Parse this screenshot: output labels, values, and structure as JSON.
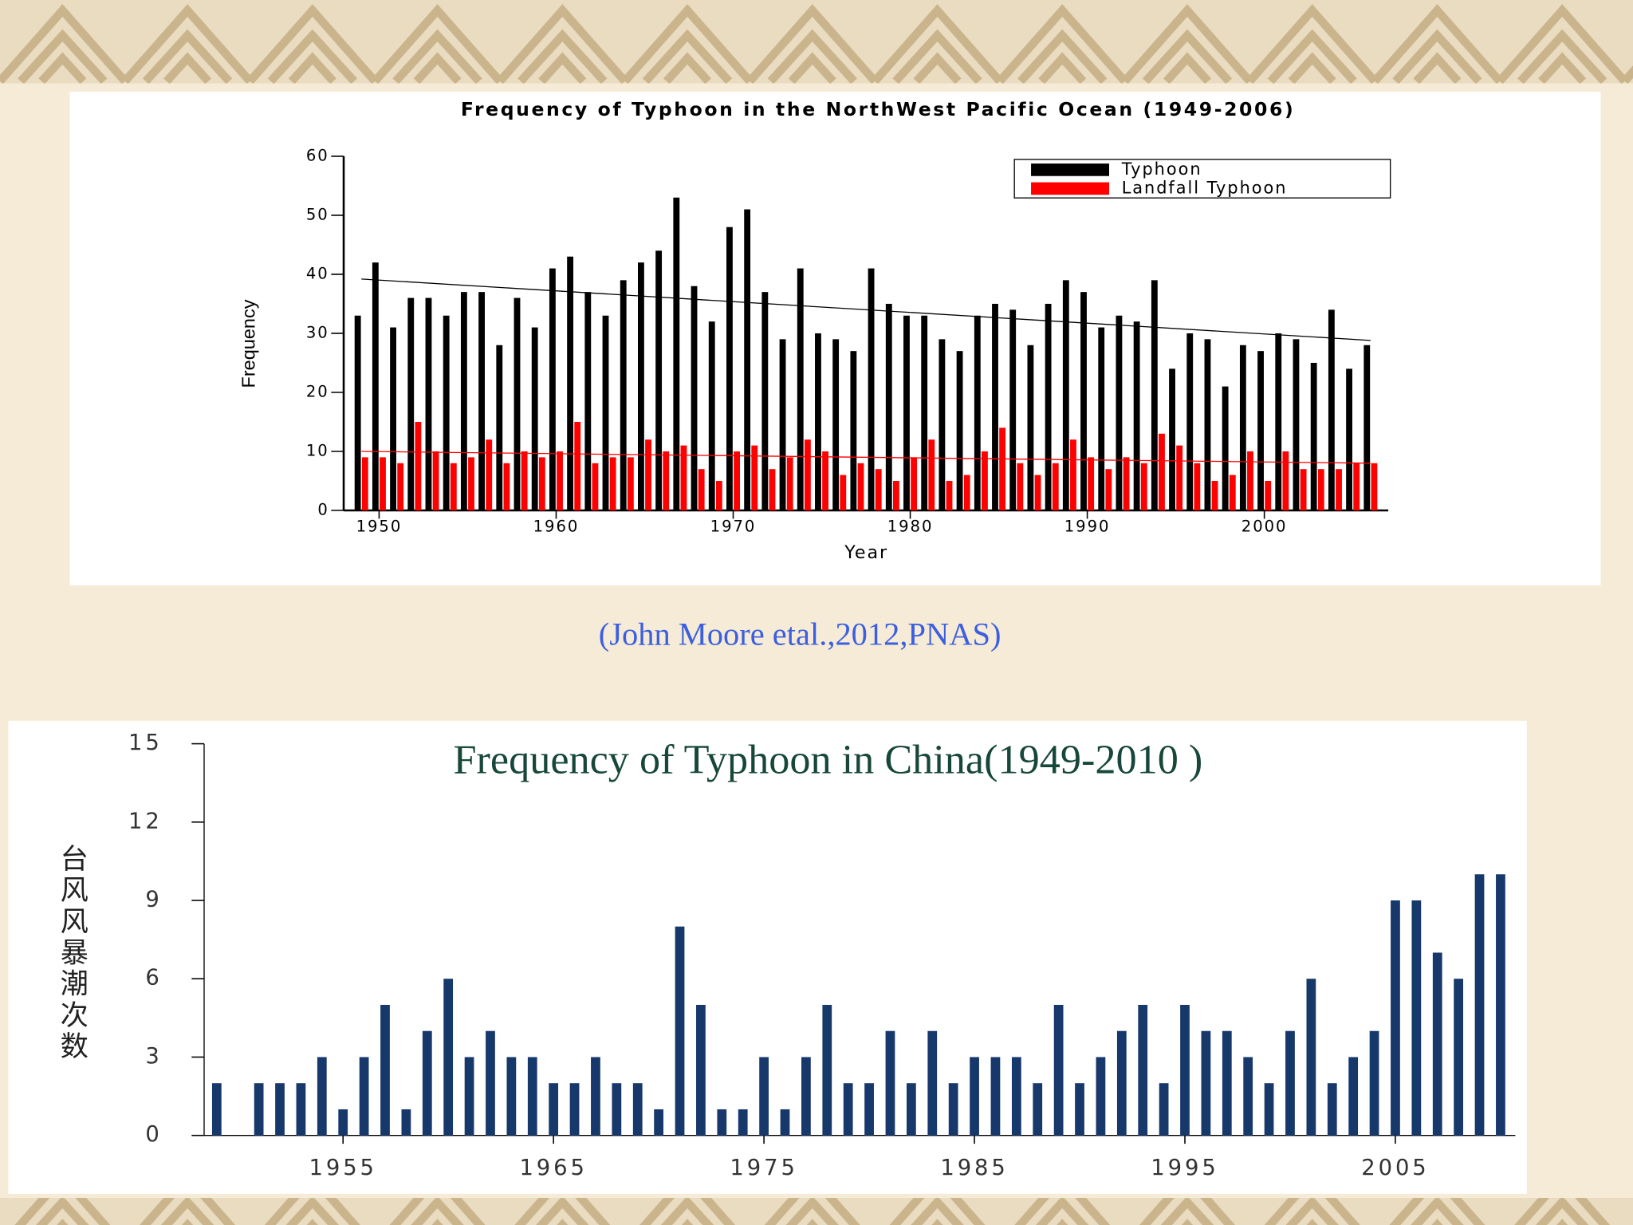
{
  "chart_data": [
    {
      "type": "bar",
      "title": "Frequency of Typhoon in  the NorthWest Pacific Ocean (1949-2006)",
      "x_label": "Year",
      "y_label": "Frequency",
      "x": [
        1949,
        1950,
        1951,
        1952,
        1953,
        1954,
        1955,
        1956,
        1957,
        1958,
        1959,
        1960,
        1961,
        1962,
        1963,
        1964,
        1965,
        1966,
        1967,
        1968,
        1969,
        1970,
        1971,
        1972,
        1973,
        1974,
        1975,
        1976,
        1977,
        1978,
        1979,
        1980,
        1981,
        1982,
        1983,
        1984,
        1985,
        1986,
        1987,
        1988,
        1989,
        1990,
        1991,
        1992,
        1993,
        1994,
        1995,
        1996,
        1997,
        1998,
        1999,
        2000,
        2001,
        2002,
        2003,
        2004,
        2005,
        2006
      ],
      "series": [
        {
          "name": "Typhoon",
          "color": "#000000",
          "values": [
            33,
            42,
            31,
            36,
            36,
            33,
            37,
            37,
            28,
            36,
            31,
            41,
            43,
            37,
            33,
            39,
            42,
            44,
            53,
            38,
            32,
            48,
            51,
            37,
            29,
            41,
            30,
            29,
            27,
            41,
            35,
            33,
            33,
            29,
            27,
            33,
            35,
            34,
            28,
            35,
            39,
            37,
            31,
            33,
            32,
            39,
            24,
            30,
            29,
            21,
            28,
            27,
            30,
            29,
            25,
            34,
            24,
            28
          ]
        },
        {
          "name": "Landfall Typhoon",
          "color": "#ff0000",
          "values": [
            9,
            9,
            8,
            15,
            10,
            8,
            9,
            12,
            8,
            10,
            9,
            10,
            15,
            8,
            9,
            9,
            12,
            10,
            11,
            7,
            5,
            10,
            11,
            7,
            9,
            12,
            10,
            6,
            8,
            7,
            5,
            9,
            12,
            5,
            6,
            10,
            14,
            8,
            6,
            8,
            12,
            9,
            7,
            9,
            8,
            13,
            11,
            8,
            5,
            6,
            10,
            5,
            10,
            7,
            7,
            7,
            8,
            8
          ]
        }
      ],
      "trend_lines": [
        {
          "color": "#000000",
          "values": [
            39.2,
            28.8
          ]
        },
        {
          "color": "#ff0000",
          "values": [
            10,
            8
          ]
        }
      ],
      "xlim": [
        1948,
        2007
      ],
      "ylim": [
        0,
        60
      ],
      "xticks": [
        1950,
        1960,
        1970,
        1980,
        1990,
        2000
      ],
      "yticks": [
        0,
        10,
        20,
        30,
        40,
        50,
        60
      ],
      "legend": "upper right"
    },
    {
      "type": "bar",
      "title": "Frequency of Typhoon in China(1949-2010 )",
      "y_label": "台风风暴潮次数",
      "x": [
        1949,
        1950,
        1951,
        1952,
        1953,
        1954,
        1955,
        1956,
        1957,
        1958,
        1959,
        1960,
        1961,
        1962,
        1963,
        1964,
        1965,
        1966,
        1967,
        1968,
        1969,
        1970,
        1971,
        1972,
        1973,
        1974,
        1975,
        1976,
        1977,
        1978,
        1979,
        1980,
        1981,
        1982,
        1983,
        1984,
        1985,
        1986,
        1987,
        1988,
        1989,
        1990,
        1991,
        1992,
        1993,
        1994,
        1995,
        1996,
        1997,
        1998,
        1999,
        2000,
        2001,
        2002,
        2003,
        2004,
        2005,
        2006,
        2007,
        2008,
        2009,
        2010
      ],
      "values": [
        2,
        0,
        2,
        2,
        2,
        3,
        1,
        3,
        5,
        1,
        4,
        6,
        3,
        4,
        3,
        3,
        2,
        2,
        3,
        2,
        2,
        1,
        8,
        5,
        1,
        1,
        3,
        1,
        3,
        5,
        2,
        2,
        4,
        2,
        4,
        2,
        3,
        3,
        3,
        2,
        5,
        2,
        3,
        4,
        5,
        2,
        5,
        4,
        4,
        3,
        2,
        4,
        6,
        2,
        3,
        4,
        9,
        9,
        7,
        6,
        10,
        10
      ],
      "color": "#17386a",
      "xlim": [
        1948.4,
        2010.7
      ],
      "ylim": [
        0,
        15
      ],
      "xticks": [
        1955,
        1965,
        1975,
        1985,
        1995,
        2005
      ],
      "yticks": [
        0,
        3,
        6,
        9,
        12,
        15
      ]
    }
  ],
  "citation": "(John Moore etal.,2012,PNAS)"
}
